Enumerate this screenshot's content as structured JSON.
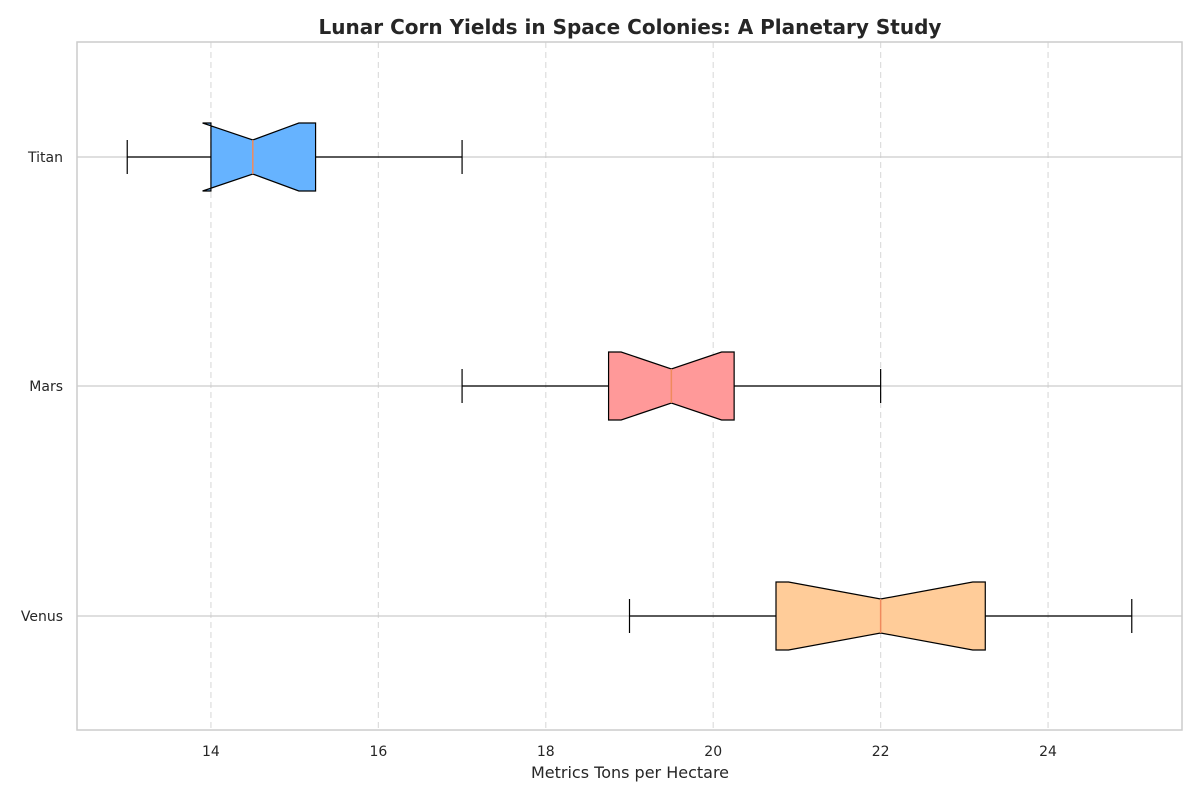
{
  "chart_data": {
    "type": "boxplot",
    "orientation": "horizontal",
    "notched": true,
    "title": "Lunar Corn Yields in Space Colonies: A Planetary Study",
    "xlabel": "Metrics Tons per Hectare",
    "ylabel": "",
    "xlim": [
      12.4,
      25.6
    ],
    "xticks": [
      14,
      16,
      18,
      20,
      22,
      24
    ],
    "grid": true,
    "categories": [
      "Venus",
      "Mars",
      "Titan"
    ],
    "series": [
      {
        "category": "Venus",
        "whisker_low": 19,
        "q1": 20.75,
        "median": 22,
        "q3": 23.25,
        "whisker_high": 25,
        "notch_low": 20.9,
        "notch_high": 23.1,
        "color": "#ffcc99"
      },
      {
        "category": "Mars",
        "whisker_low": 17,
        "q1": 18.75,
        "median": 19.5,
        "q3": 20.25,
        "whisker_high": 22,
        "notch_low": 18.9,
        "notch_high": 20.1,
        "color": "#ff9999"
      },
      {
        "category": "Titan",
        "whisker_low": 13,
        "q1": 14,
        "median": 14.5,
        "q3": 15.25,
        "whisker_high": 17,
        "notch_low": 13.9,
        "notch_high": 15.05,
        "color": "#66b3ff"
      }
    ],
    "median_color": "#f08a5d"
  }
}
